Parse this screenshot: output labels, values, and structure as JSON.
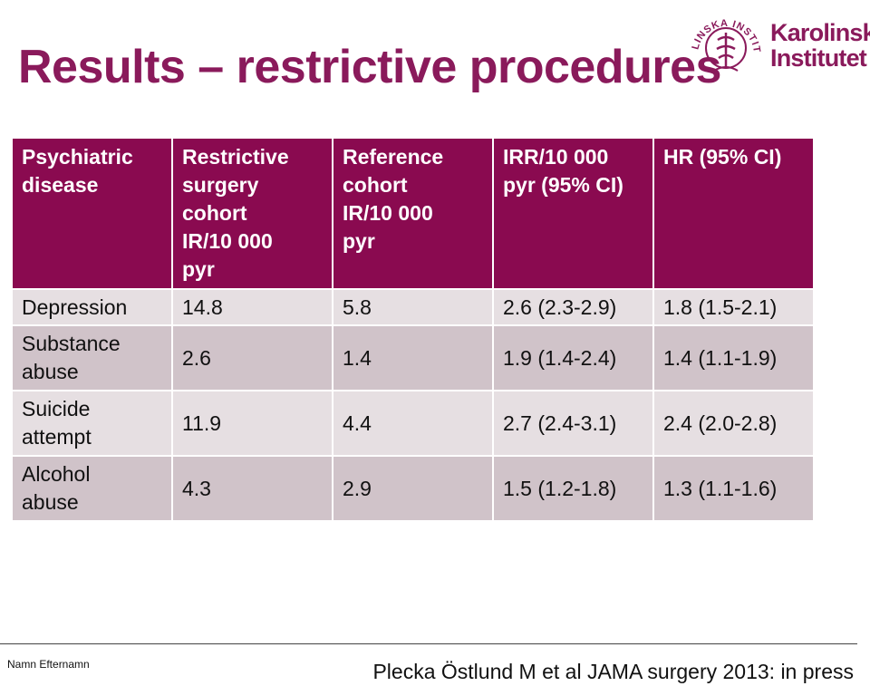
{
  "slide": {
    "title": "Results – restrictive procedures",
    "presenter": "Namn Efternamn",
    "citation": "Plecka Östlund M et al JAMA surgery 2013: in press"
  },
  "logo": {
    "name_line1": "Karolinska",
    "name_line2": "Institutet",
    "seal_text": "KAROLINSKA INSTITUTET",
    "color": "#8a1a5b"
  },
  "table": {
    "headers": [
      [
        "Psychiatric",
        "disease"
      ],
      [
        "Restrictive",
        "surgery",
        "cohort",
        "IR/10 000",
        "pyr"
      ],
      [
        "Reference",
        "cohort",
        "IR/10 000",
        "pyr"
      ],
      [
        "IRR/10 000",
        "pyr (95% CI)"
      ],
      [
        "HR (95% CI)"
      ]
    ],
    "rows": [
      {
        "disease": [
          "Depression"
        ],
        "restrictive_ir": "14.8",
        "reference_ir": "5.8",
        "irr": "2.6 (2.3-2.9)",
        "hr": "1.8 (1.5-2.1)"
      },
      {
        "disease": [
          "Substance",
          "abuse"
        ],
        "restrictive_ir": "2.6",
        "reference_ir": "1.4",
        "irr": "1.9 (1.4-2.4)",
        "hr": "1.4 (1.1-1.9)"
      },
      {
        "disease": [
          "Suicide",
          "attempt"
        ],
        "restrictive_ir": "11.9",
        "reference_ir": "4.4",
        "irr": "2.7 (2.4-3.1)",
        "hr": "2.4 (2.0-2.8)"
      },
      {
        "disease": [
          "Alcohol",
          "abuse"
        ],
        "restrictive_ir": "4.3",
        "reference_ir": "2.9",
        "irr": "1.5 (1.2-1.8)",
        "hr": "1.3 (1.1-1.6)"
      }
    ],
    "colors": {
      "header_bg": "#8a0a50",
      "row_light": "#e6dfe2",
      "row_dark": "#d0c3c9"
    }
  }
}
